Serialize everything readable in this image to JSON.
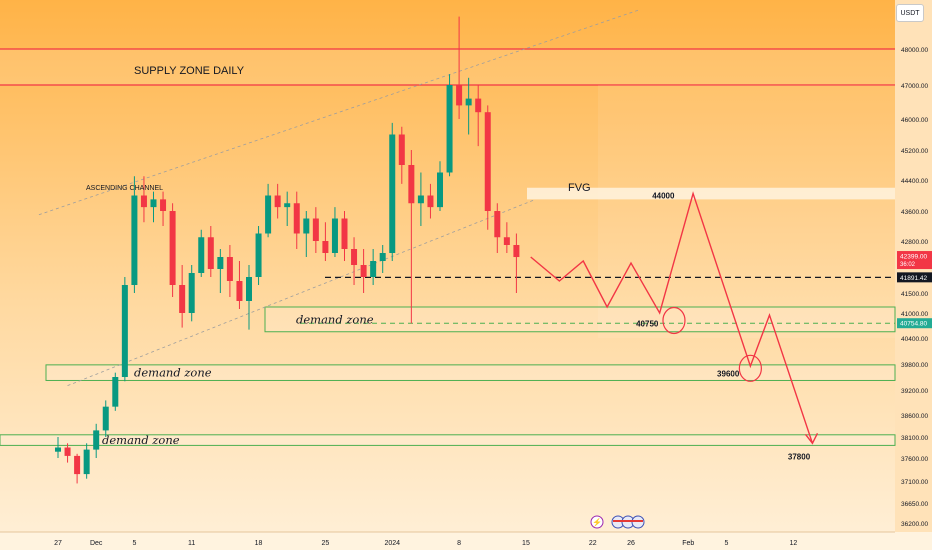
{
  "currency": "USDT",
  "chart_data": {
    "type": "candlestick",
    "y_axis": {
      "ticks": [
        48000,
        47000,
        46000,
        45200,
        44400,
        43600,
        42800,
        41500,
        41000,
        40400,
        39800,
        39200,
        38600,
        38100,
        37600,
        37100,
        36650,
        36200
      ],
      "tick_labels": [
        "48000.00",
        "47000.00",
        "46000.00",
        "45200.00",
        "44400.00",
        "43600.00",
        "42800.00",
        "41500.00",
        "41000.00",
        "40400.00",
        "39800.00",
        "39200.00",
        "38600.00",
        "38100.00",
        "37600.00",
        "37100.00",
        "36650.00",
        "36200.00"
      ]
    },
    "x_axis": {
      "ticks": [
        {
          "day": 0,
          "label": "27"
        },
        {
          "day": 4,
          "label": "Dec"
        },
        {
          "day": 8,
          "label": "5"
        },
        {
          "day": 14,
          "label": "11"
        },
        {
          "day": 21,
          "label": "18"
        },
        {
          "day": 28,
          "label": "25"
        },
        {
          "day": 35,
          "label": "2024"
        },
        {
          "day": 42,
          "label": "8"
        },
        {
          "day": 49,
          "label": "15"
        },
        {
          "day": 56,
          "label": "22"
        },
        {
          "day": 60,
          "label": "26"
        },
        {
          "day": 66,
          "label": "Feb"
        },
        {
          "day": 70,
          "label": "5"
        },
        {
          "day": 77,
          "label": "12"
        }
      ]
    },
    "price_badges": [
      {
        "label": "42399.00",
        "sub": "36:02",
        "price": 42399,
        "color": "#f23645"
      },
      {
        "label": "41891.42",
        "price": 41891.42,
        "color": "#131722"
      },
      {
        "label": "40754.80",
        "price": 40754.8,
        "color": "#22ab94"
      }
    ],
    "supply_zone": {
      "label": "SUPPLY ZONE DAILY",
      "top": 48000,
      "bottom": 47000
    },
    "fvg_zone": {
      "label": "FVG",
      "top": 44200,
      "bottom": 43900
    },
    "demand_zones": [
      {
        "label": "demand zone",
        "top": 41150,
        "bottom": 40550
      },
      {
        "label": "demand zone",
        "top": 39780,
        "bottom": 39420
      },
      {
        "label": "demand zone",
        "top": 38150,
        "bottom": 37900
      }
    ],
    "channel_label": "ASCENDING CHANNEL",
    "channel_lines": [
      {
        "p1": [
          -2,
          43500
        ],
        "p2": [
          61,
          49100
        ]
      },
      {
        "p1": [
          1,
          39300
        ],
        "p2": [
          50,
          43900
        ]
      }
    ],
    "dashed_levels": [
      41891.42,
      40754.8
    ],
    "projection": [
      [
        49.5,
        42400
      ],
      [
        52.5,
        41800
      ],
      [
        55,
        42300
      ],
      [
        57.5,
        41150
      ],
      [
        60,
        42250
      ],
      [
        63,
        41000
      ],
      [
        66.5,
        44050
      ],
      [
        72.5,
        39750
      ],
      [
        74.5,
        40950
      ],
      [
        79,
        37950
      ]
    ],
    "targets": [
      {
        "label": "44000",
        "price": 44000,
        "day": 64
      },
      {
        "label": "40750",
        "price": 40750,
        "day": 62
      },
      {
        "label": "39600",
        "price": 39600,
        "day": 71
      },
      {
        "label": "37800",
        "price": 37800,
        "day": 78
      }
    ],
    "circles": [
      {
        "day": 64.5,
        "price": 40820
      },
      {
        "day": 72.5,
        "price": 39700
      }
    ],
    "candles": [
      {
        "day": 0,
        "o": 37750,
        "h": 38100,
        "l": 37600,
        "c": 37850
      },
      {
        "day": 1,
        "o": 37850,
        "h": 37950,
        "l": 37500,
        "c": 37650
      },
      {
        "day": 2,
        "o": 37650,
        "h": 37700,
        "l": 37050,
        "c": 37250
      },
      {
        "day": 3,
        "o": 37250,
        "h": 37950,
        "l": 37150,
        "c": 37800
      },
      {
        "day": 4,
        "o": 37800,
        "h": 38400,
        "l": 37600,
        "c": 38250
      },
      {
        "day": 5,
        "o": 38250,
        "h": 38950,
        "l": 38100,
        "c": 38800
      },
      {
        "day": 6,
        "o": 38800,
        "h": 39600,
        "l": 38700,
        "c": 39500
      },
      {
        "day": 7,
        "o": 39500,
        "h": 41900,
        "l": 39400,
        "c": 41700
      },
      {
        "day": 8,
        "o": 41700,
        "h": 44500,
        "l": 41500,
        "c": 44000
      },
      {
        "day": 9,
        "o": 44000,
        "h": 44500,
        "l": 43300,
        "c": 43700
      },
      {
        "day": 10,
        "o": 43700,
        "h": 44100,
        "l": 43300,
        "c": 43900
      },
      {
        "day": 11,
        "o": 43900,
        "h": 44100,
        "l": 43200,
        "c": 43600
      },
      {
        "day": 12,
        "o": 43600,
        "h": 43800,
        "l": 41400,
        "c": 41700
      },
      {
        "day": 13,
        "o": 41700,
        "h": 42200,
        "l": 40650,
        "c": 41000
      },
      {
        "day": 14,
        "o": 41000,
        "h": 42200,
        "l": 40800,
        "c": 42000
      },
      {
        "day": 15,
        "o": 42000,
        "h": 43100,
        "l": 41900,
        "c": 42900
      },
      {
        "day": 16,
        "o": 42900,
        "h": 43200,
        "l": 41900,
        "c": 42100
      },
      {
        "day": 17,
        "o": 42100,
        "h": 42600,
        "l": 41500,
        "c": 42400
      },
      {
        "day": 18,
        "o": 42400,
        "h": 42700,
        "l": 41400,
        "c": 41800
      },
      {
        "day": 19,
        "o": 41800,
        "h": 42300,
        "l": 41100,
        "c": 41300
      },
      {
        "day": 20,
        "o": 41300,
        "h": 42200,
        "l": 40600,
        "c": 41900
      },
      {
        "day": 21,
        "o": 41900,
        "h": 43200,
        "l": 41700,
        "c": 43000
      },
      {
        "day": 22,
        "o": 43000,
        "h": 44300,
        "l": 42900,
        "c": 44000
      },
      {
        "day": 23,
        "o": 44000,
        "h": 44300,
        "l": 43400,
        "c": 43700
      },
      {
        "day": 24,
        "o": 43700,
        "h": 44100,
        "l": 43200,
        "c": 43800
      },
      {
        "day": 25,
        "o": 43800,
        "h": 44100,
        "l": 42600,
        "c": 43000
      },
      {
        "day": 26,
        "o": 43000,
        "h": 43600,
        "l": 42400,
        "c": 43400
      },
      {
        "day": 27,
        "o": 43400,
        "h": 43700,
        "l": 42500,
        "c": 42800
      },
      {
        "day": 28,
        "o": 42800,
        "h": 43300,
        "l": 42300,
        "c": 42500
      },
      {
        "day": 29,
        "o": 42500,
        "h": 43700,
        "l": 42400,
        "c": 43400
      },
      {
        "day": 30,
        "o": 43400,
        "h": 43600,
        "l": 42300,
        "c": 42600
      },
      {
        "day": 31,
        "o": 42600,
        "h": 42900,
        "l": 41700,
        "c": 42200
      },
      {
        "day": 32,
        "o": 42200,
        "h": 42600,
        "l": 41500,
        "c": 41900
      },
      {
        "day": 33,
        "o": 41900,
        "h": 42600,
        "l": 41700,
        "c": 42300
      },
      {
        "day": 34,
        "o": 42300,
        "h": 42700,
        "l": 42000,
        "c": 42500
      },
      {
        "day": 35,
        "o": 42500,
        "h": 45900,
        "l": 42300,
        "c": 45600
      },
      {
        "day": 36,
        "o": 45600,
        "h": 45800,
        "l": 44300,
        "c": 44800
      },
      {
        "day": 37,
        "o": 44800,
        "h": 45200,
        "l": 40750,
        "c": 43800
      },
      {
        "day": 38,
        "o": 43800,
        "h": 44600,
        "l": 43200,
        "c": 44000
      },
      {
        "day": 39,
        "o": 44000,
        "h": 44300,
        "l": 43400,
        "c": 43700
      },
      {
        "day": 40,
        "o": 43700,
        "h": 44900,
        "l": 43600,
        "c": 44600
      },
      {
        "day": 41,
        "o": 44600,
        "h": 47300,
        "l": 44500,
        "c": 47000
      },
      {
        "day": 42,
        "o": 47000,
        "h": 48900,
        "l": 46000,
        "c": 46400
      },
      {
        "day": 43,
        "o": 46400,
        "h": 47200,
        "l": 45600,
        "c": 46600
      },
      {
        "day": 44,
        "o": 46600,
        "h": 47000,
        "l": 45300,
        "c": 46200
      },
      {
        "day": 45,
        "o": 46200,
        "h": 46400,
        "l": 43100,
        "c": 43600
      },
      {
        "day": 46,
        "o": 43600,
        "h": 43800,
        "l": 42500,
        "c": 42900
      },
      {
        "day": 47,
        "o": 42900,
        "h": 43300,
        "l": 42500,
        "c": 42700
      },
      {
        "day": 48,
        "o": 42700,
        "h": 43000,
        "l": 41500,
        "c": 42399
      }
    ]
  }
}
